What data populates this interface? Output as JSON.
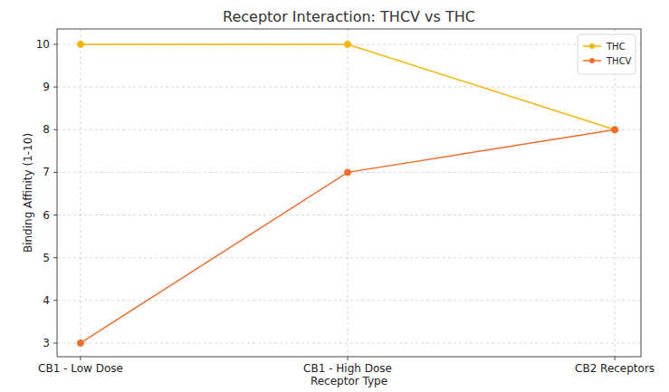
{
  "chart_data": {
    "type": "line",
    "title": "Receptor Interaction: THCV vs THC",
    "x_label": "Receptor Type",
    "y_label": "Binding Affinity (1-10)",
    "categories": [
      "CB1 - Low Dose",
      "CB1 - High Dose",
      "CB2 Receptors"
    ],
    "series": [
      {
        "name": "THC",
        "color": "#f7b500",
        "marker": "circle",
        "values": [
          10,
          10,
          8
        ]
      },
      {
        "name": "THCV",
        "color": "#ef6c2a",
        "marker": "circle",
        "values": [
          3,
          7,
          8
        ]
      }
    ],
    "ylim": [
      2.68,
      10.36
    ],
    "yticks": [
      3,
      4,
      5,
      6,
      7,
      8,
      9,
      10
    ],
    "grid": true,
    "legend": "upper right"
  }
}
